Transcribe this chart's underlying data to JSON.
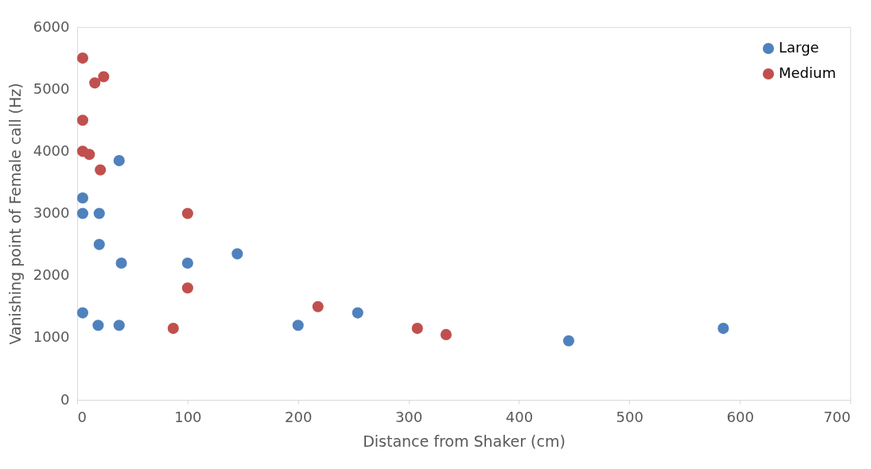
{
  "chart_data": {
    "type": "scatter",
    "xlabel": "Distance from Shaker (cm)",
    "ylabel": "Vanishing point of Female call (Hz)",
    "xlim": [
      0,
      700
    ],
    "xticks": [
      0,
      100,
      200,
      300,
      400,
      500,
      600,
      700
    ],
    "ylim": [
      0,
      6000
    ],
    "yticks": [
      0,
      1000,
      2000,
      3000,
      4000,
      5000,
      6000
    ],
    "grid": false,
    "legend": "top right",
    "marker": "circle",
    "series": [
      {
        "name": "Large",
        "color": "#4f81bd",
        "x": [
          5,
          5,
          20,
          38,
          20,
          40,
          100,
          145,
          5,
          19,
          38,
          200,
          254,
          445,
          585
        ],
        "values": [
          3250,
          3000,
          3000,
          3850,
          2500,
          2200,
          2200,
          2350,
          1400,
          1200,
          1200,
          1200,
          1400,
          950,
          1150
        ]
      },
      {
        "name": "Medium",
        "color": "#c0504d",
        "x": [
          5,
          24,
          16,
          5,
          5,
          11,
          21,
          100,
          100,
          87,
          218,
          308,
          334
        ],
        "values": [
          5500,
          5200,
          5100,
          4500,
          4000,
          3950,
          3700,
          3000,
          1800,
          1150,
          1500,
          1150,
          1050
        ]
      }
    ]
  }
}
